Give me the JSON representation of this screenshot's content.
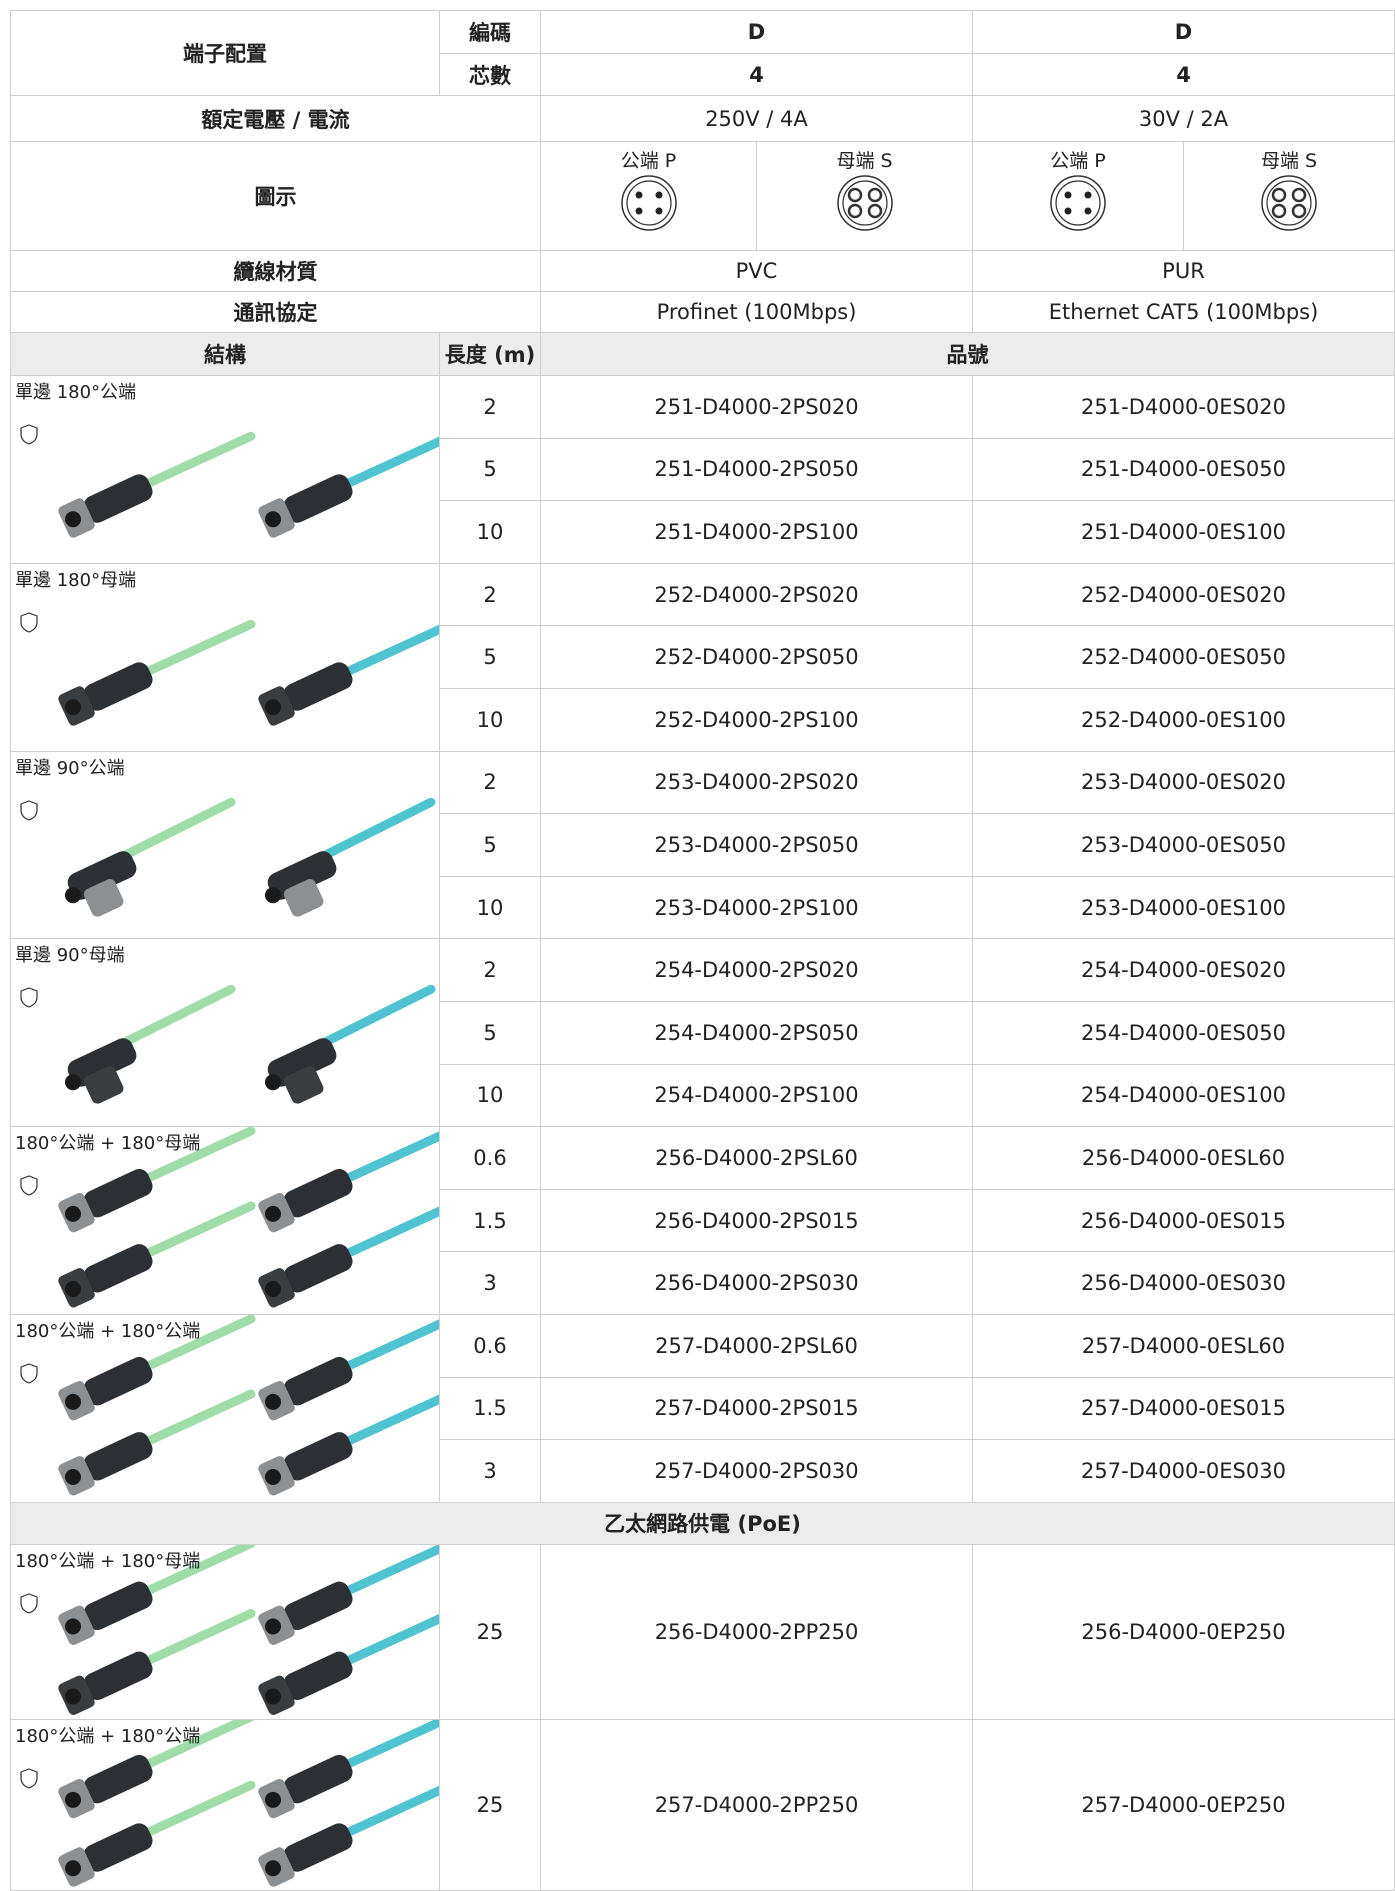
{
  "header": {
    "terminal_config": "端子配置",
    "coding_label": "編碼",
    "cores_label": "芯數",
    "coding": [
      "D",
      "D"
    ],
    "cores": [
      4,
      4
    ],
    "voltage_label": "額定電壓 / 電流",
    "voltage": [
      "250V / 4A",
      "30V / 2A"
    ],
    "diagram_label": "圖示",
    "diagram_labels": [
      "公端 P",
      "母端 S",
      "公端 P",
      "母端 S"
    ],
    "material_label": "纜線材質",
    "material": [
      "PVC",
      "PUR"
    ],
    "protocol_label": "通訊協定",
    "protocol": [
      "Profinet (100Mbps)",
      "Ethernet CAT5 (100Mbps)"
    ]
  },
  "table": {
    "columns": [
      "結構",
      "長度 (m)",
      "品號"
    ],
    "groups": [
      {
        "label": "單邊 180°公端",
        "rows": [
          [
            2,
            "251-D4000-2PS020",
            "251-D4000-0ES020"
          ],
          [
            5,
            "251-D4000-2PS050",
            "251-D4000-0ES050"
          ],
          [
            10,
            "251-D4000-2PS100",
            "251-D4000-0ES100"
          ]
        ]
      },
      {
        "label": "單邊 180°母端",
        "rows": [
          [
            2,
            "252-D4000-2PS020",
            "252-D4000-0ES020"
          ],
          [
            5,
            "252-D4000-2PS050",
            "252-D4000-0ES050"
          ],
          [
            10,
            "252-D4000-2PS100",
            "252-D4000-0ES100"
          ]
        ]
      },
      {
        "label": "單邊 90°公端",
        "rows": [
          [
            2,
            "253-D4000-2PS020",
            "253-D4000-0ES020"
          ],
          [
            5,
            "253-D4000-2PS050",
            "253-D4000-0ES050"
          ],
          [
            10,
            "253-D4000-2PS100",
            "253-D4000-0ES100"
          ]
        ]
      },
      {
        "label": "單邊 90°母端",
        "rows": [
          [
            2,
            "254-D4000-2PS020",
            "254-D4000-0ES020"
          ],
          [
            5,
            "254-D4000-2PS050",
            "254-D4000-0ES050"
          ],
          [
            10,
            "254-D4000-2PS100",
            "254-D4000-0ES100"
          ]
        ]
      },
      {
        "label": "180°公端 + 180°母端",
        "rows": [
          [
            0.6,
            "256-D4000-2PSL60",
            "256-D4000-0ESL60"
          ],
          [
            1.5,
            "256-D4000-2PS015",
            "256-D4000-0ES015"
          ],
          [
            3,
            "256-D4000-2PS030",
            "256-D4000-0ES030"
          ]
        ]
      },
      {
        "label": "180°公端 + 180°公端",
        "rows": [
          [
            0.6,
            "257-D4000-2PSL60",
            "257-D4000-0ESL60"
          ],
          [
            1.5,
            "257-D4000-2PS015",
            "257-D4000-0ES015"
          ],
          [
            3,
            "257-D4000-2PS030",
            "257-D4000-0ES030"
          ]
        ]
      }
    ]
  },
  "poe": {
    "title": "乙太網路供電 (PoE)",
    "groups": [
      {
        "label": "180°公端 + 180°母端",
        "rows": [
          [
            25,
            "256-D4000-2PP250",
            "256-D4000-0EP250"
          ]
        ]
      },
      {
        "label": "180°公端 + 180°公端",
        "rows": [
          [
            25,
            "257-D4000-2PP250",
            "257-D4000-0EP250"
          ]
        ]
      }
    ]
  }
}
